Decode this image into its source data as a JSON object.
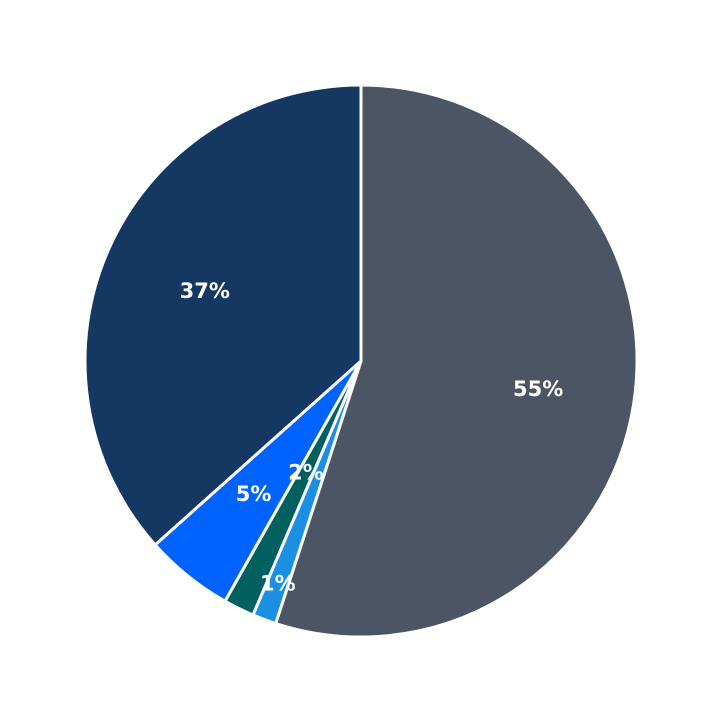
{
  "chart_data": {
    "type": "pie",
    "start": "top",
    "direction": "clockwise",
    "slices": [
      {
        "value": 55.0,
        "label": "55%",
        "color": "#4b5563"
      },
      {
        "value": 1.4,
        "label": "1%",
        "color": "#1a8fe3"
      },
      {
        "value": 1.8,
        "label": "2%",
        "color": "#005f5f"
      },
      {
        "value": 5.2,
        "label": "5%",
        "color": "#0062ff"
      },
      {
        "value": 36.6,
        "label": "37%",
        "color": "#143862"
      }
    ],
    "edge_color": "#ffffff"
  }
}
